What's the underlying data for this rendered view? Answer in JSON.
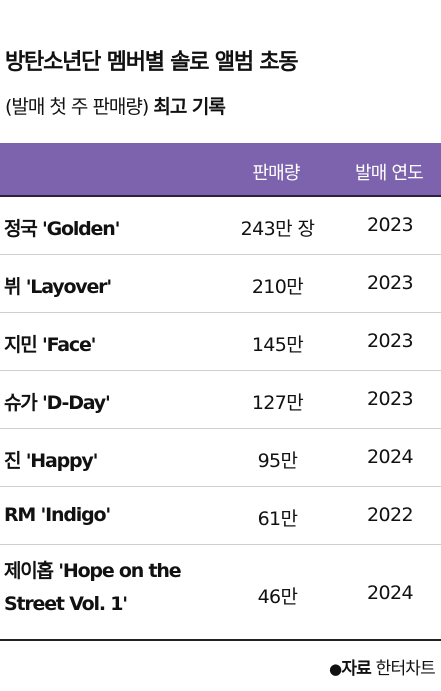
{
  "title": "방탄소년단 멤버별 솔로 앨범 초동",
  "subtitle": {
    "light": "(발매 첫 주 판매량)",
    "bold": "최고 기록"
  },
  "table": {
    "headers": {
      "name": "",
      "sales": "판매량",
      "year": "발매 연도"
    },
    "rows": [
      {
        "name": "정국 'Golden'",
        "sales": "243만 장",
        "year": "2023"
      },
      {
        "name": "뷔 'Layover'",
        "sales": "210만",
        "year": "2023"
      },
      {
        "name": "지민 'Face'",
        "sales": "145만",
        "year": "2023"
      },
      {
        "name": "슈가 'D-Day'",
        "sales": "127만",
        "year": "2023"
      },
      {
        "name": "진 'Happy'",
        "sales": "95만",
        "year": "2024"
      },
      {
        "name": "RM 'Indigo'",
        "sales": "61만",
        "year": "2022"
      },
      {
        "name": "제이홉 'Hope on the Street Vol. 1'",
        "sales": "46만",
        "year": "2024"
      }
    ]
  },
  "source": {
    "bullet": "●",
    "label": "자료",
    "value": "한터차트"
  },
  "colors": {
    "header_bg": "#7d63ad",
    "header_text": "#ffffff"
  }
}
